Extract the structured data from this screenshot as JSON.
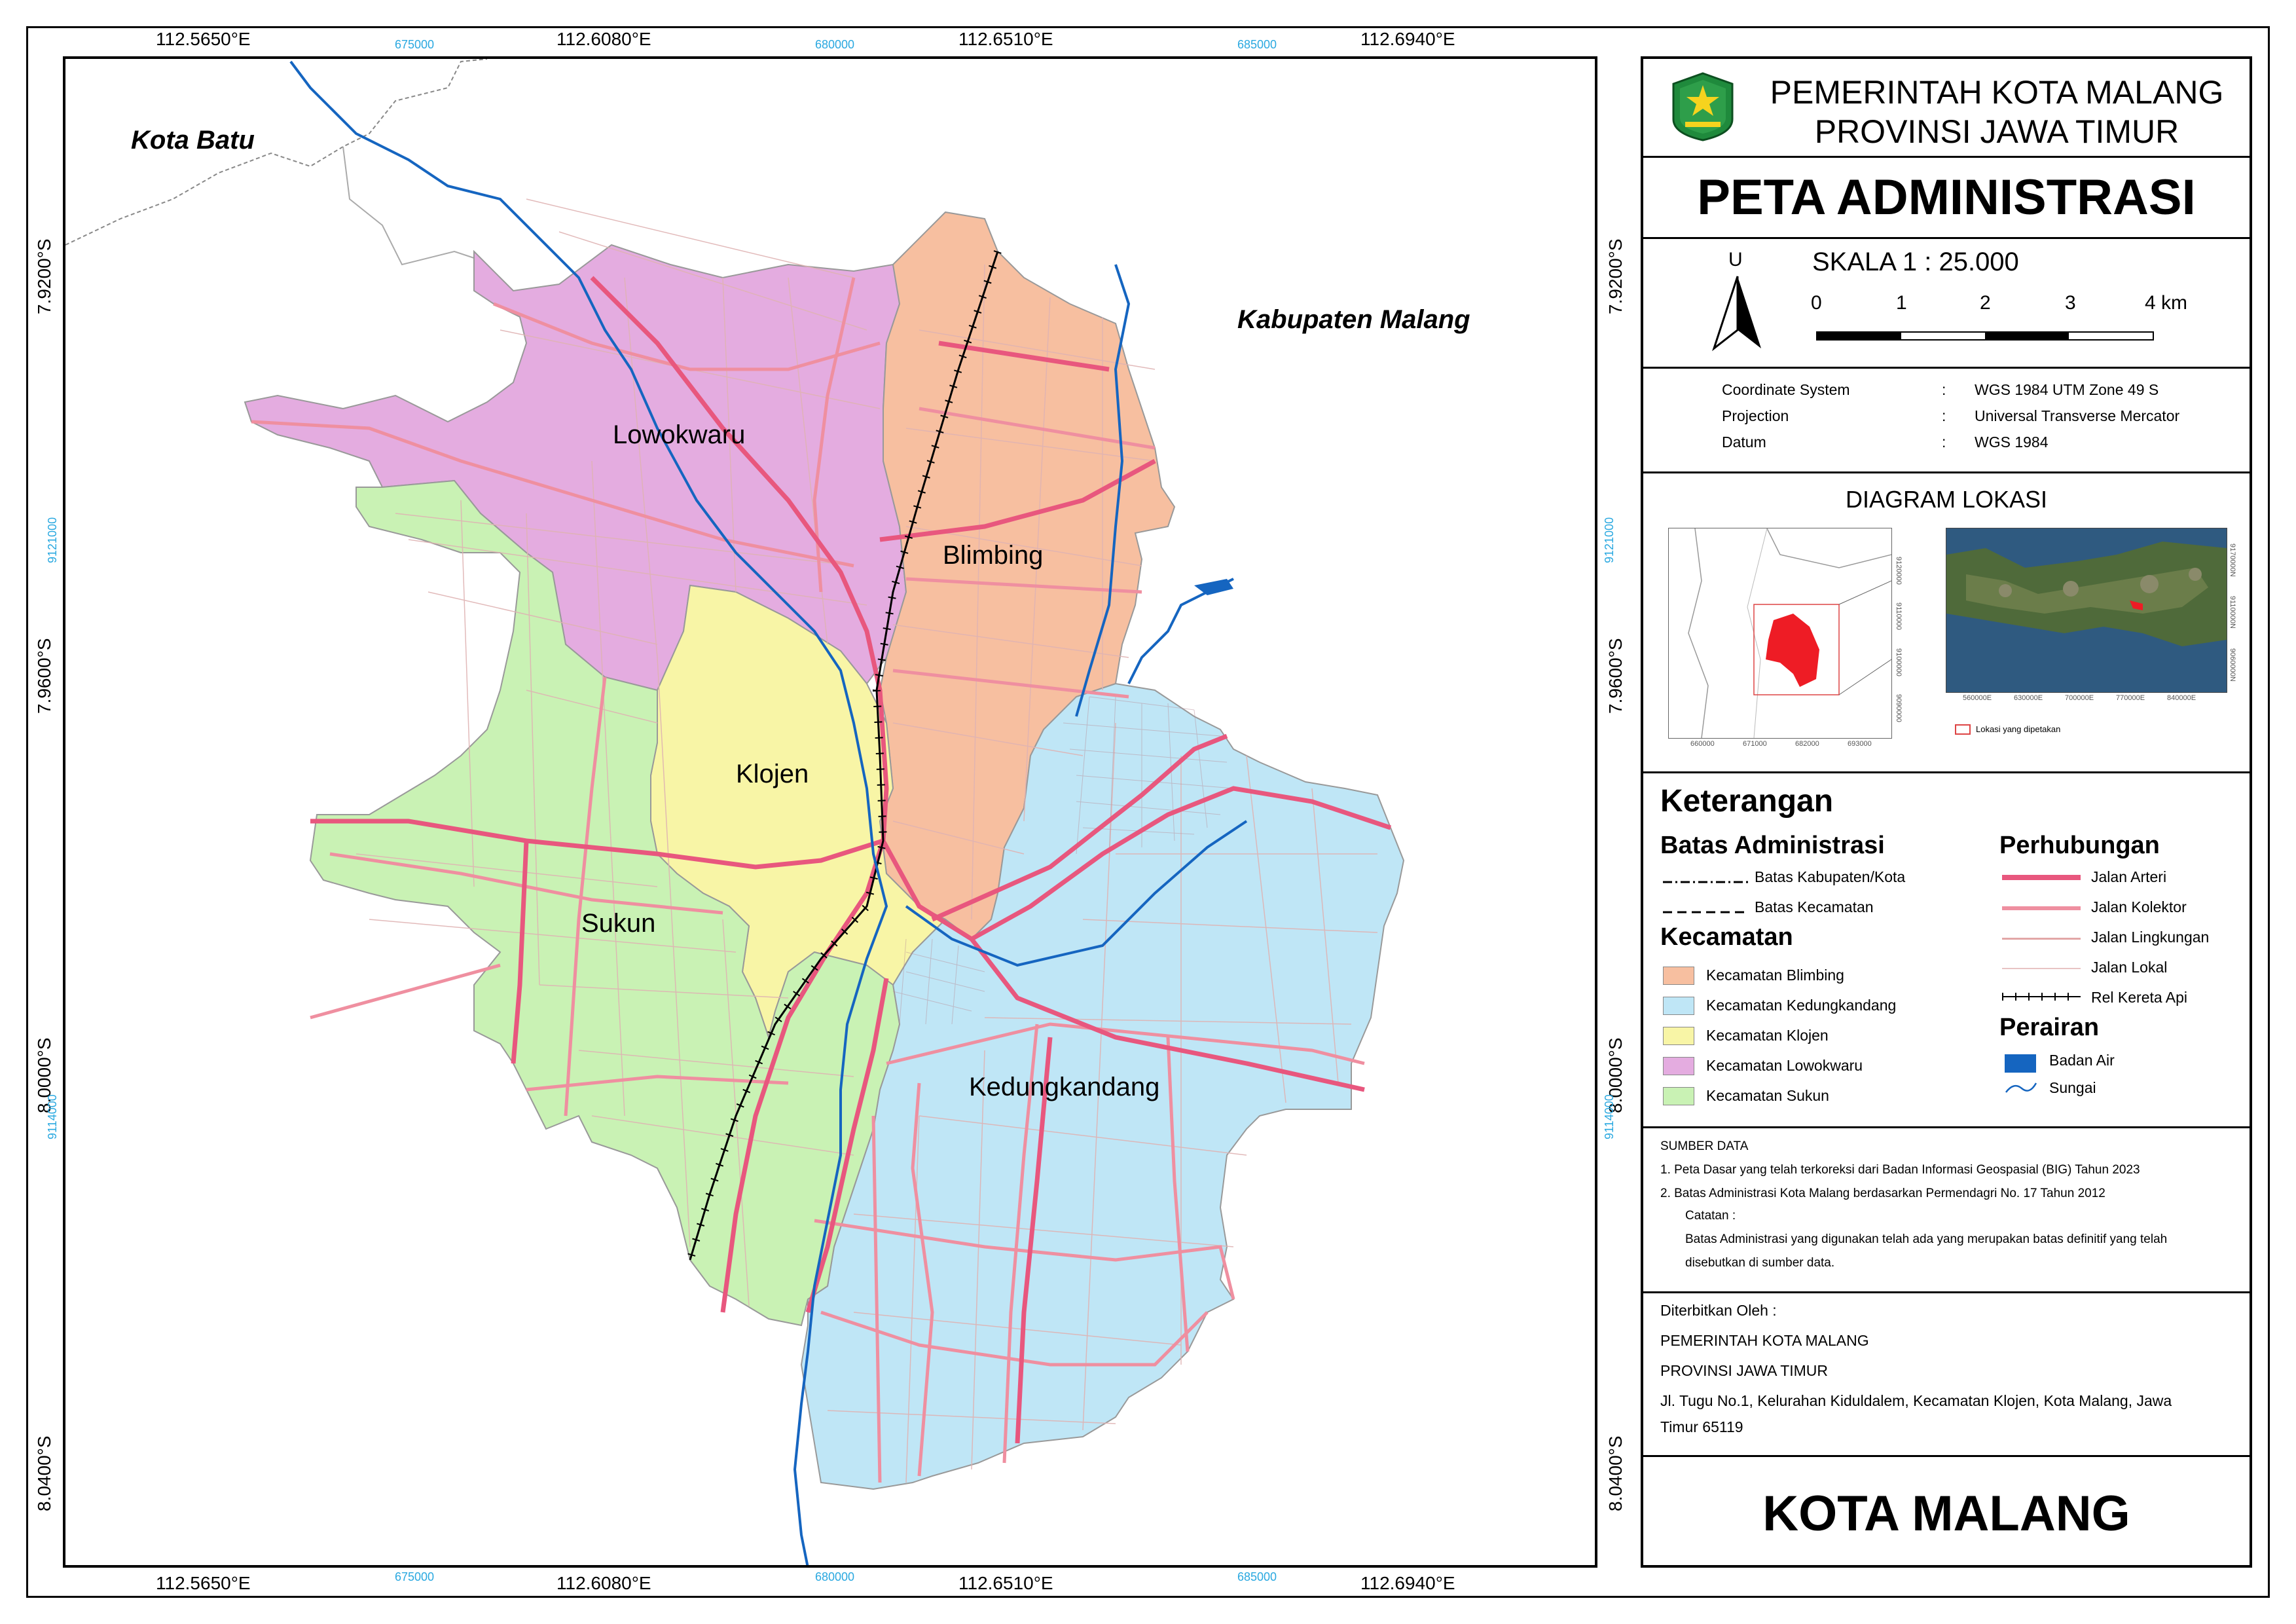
{
  "header": {
    "gov_line1": "PEMERINTAH KOTA MALANG",
    "gov_line2": "PROVINSI JAWA TIMUR",
    "map_title": "PETA ADMINISTRASI",
    "footer_title": "KOTA MALANG"
  },
  "north_arrow": {
    "letter": "U"
  },
  "scale": {
    "text": "SKALA 1 : 25.000",
    "ticks": [
      "0",
      "1",
      "2",
      "3",
      "4 km"
    ]
  },
  "projection": [
    {
      "label": "Coordinate System",
      "sep": ":",
      "value": "WGS 1984 UTM Zone 49 S"
    },
    {
      "label": "Projection",
      "sep": ":",
      "value": "Universal Transverse Mercator"
    },
    {
      "label": "Datum",
      "sep": ":",
      "value": "WGS 1984"
    }
  ],
  "location_diagram": {
    "title": "DIAGRAM LOKASI",
    "legend_label": "Lokasi yang dipetakan",
    "left_x_ticks": [
      "660000",
      "671000",
      "682000",
      "693000"
    ],
    "left_y_ticks": [
      "9120000",
      "9110000",
      "9100000",
      "9090000"
    ],
    "right_x_ticks": [
      "560000E",
      "630000E",
      "700000E",
      "770000E",
      "840000E"
    ],
    "right_y_ticks": [
      "9170000N",
      "9110000N",
      "9060000N"
    ]
  },
  "legend": {
    "title": "Keterangan",
    "batas_title": "Batas Administrasi",
    "batas_items": [
      {
        "label": "Batas Kabupaten/Kota",
        "style": "dash-dot"
      },
      {
        "label": "Batas Kecamatan",
        "style": "dash"
      }
    ],
    "kecamatan_title": "Kecamatan",
    "kecamatan_items": [
      {
        "label": "Kecamatan Blimbing",
        "color": "#f7bfa0"
      },
      {
        "label": "Kecamatan Kedungkandang",
        "color": "#bfe6f6"
      },
      {
        "label": "Kecamatan Klojen",
        "color": "#f8f5a6"
      },
      {
        "label": "Kecamatan Lowokwaru",
        "color": "#e4ace0"
      },
      {
        "label": "Kecamatan Sukun",
        "color": "#c9f2b4"
      }
    ],
    "perhubungan_title": "Perhubungan",
    "perhubungan_items": [
      {
        "label": "Jalan Arteri",
        "color": "#e8577e"
      },
      {
        "label": "Jalan Kolektor",
        "color": "#ef8fa0"
      },
      {
        "label": "Jalan Lingkungan",
        "color": "#e2a7a7"
      },
      {
        "label": "Jalan Lokal",
        "color": "#e8c4c4"
      },
      {
        "label": "Rel Kereta Api",
        "color": "#000000"
      }
    ],
    "perairan_title": "Perairan",
    "perairan_items": [
      {
        "label": "Badan Air",
        "color": "#1565c0"
      },
      {
        "label": "Sungai",
        "color": "#1565c0"
      }
    ]
  },
  "sources": {
    "title": "SUMBER DATA",
    "items": [
      "1.   Peta Dasar yang telah terkoreksi dari Badan Informasi Geospasial (BIG) Tahun 2023",
      "2.   Batas Administrasi Kota Malang berdasarkan Permendagri No. 17 Tahun 2012"
    ],
    "note_title": "Catatan :",
    "note_lines": [
      "Batas Administrasi yang digunakan telah ada yang merupakan batas definitif yang telah",
      "disebutkan di sumber data."
    ]
  },
  "publisher": {
    "lines": [
      "Diterbitkan Oleh :",
      "PEMERINTAH KOTA MALANG",
      "PROVINSI JAWA TIMUR",
      "Jl. Tugu No.1, Kelurahan Kiduldalem, Kecamatan Klojen, Kota Malang, Jawa",
      "Timur 65119"
    ]
  },
  "map": {
    "top_coords": [
      "112.5650°E",
      "112.6080°E",
      "112.6510°E",
      "112.6940°E"
    ],
    "bottom_coords": [
      "112.5650°E",
      "112.6080°E",
      "112.6510°E",
      "112.6940°E"
    ],
    "utm_x": [
      "675000",
      "680000",
      "685000"
    ],
    "left_coords": [
      "7.9200°S",
      "7.9600°S",
      "8.0000°S",
      "8.0400°S"
    ],
    "right_coords": [
      "7.9200°S",
      "7.9600°S",
      "8.0000°S",
      "8.0400°S"
    ],
    "utm_y": [
      "9121000",
      "9114000"
    ],
    "region_labels": {
      "kota_batu": "Kota Batu",
      "kab_malang": "Kabupaten Malang",
      "lowokwaru": "Lowokwaru",
      "blimbing": "Blimbing",
      "klojen": "Klojen",
      "sukun": "Sukun",
      "kedungkandang": "Kedungkandang"
    }
  }
}
